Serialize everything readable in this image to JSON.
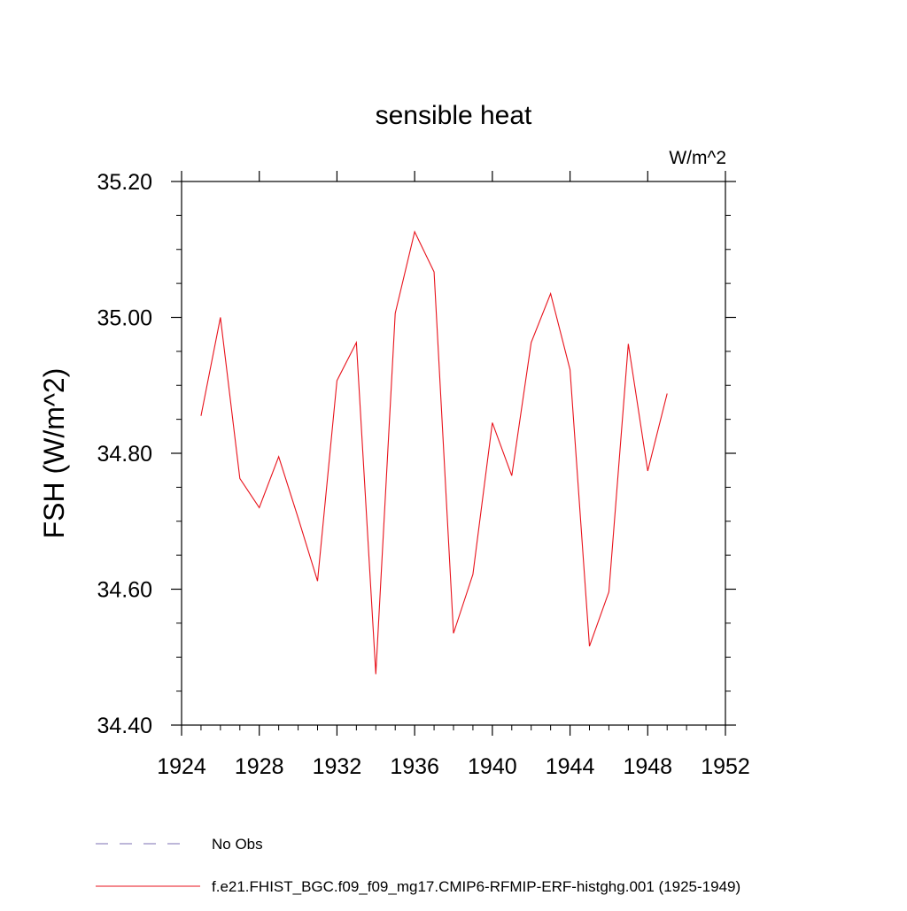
{
  "chart_data": {
    "type": "line",
    "title": "sensible heat",
    "units_label": "W/m^2",
    "ylabel": "FSH  (W/m^2)",
    "xlabel": "",
    "xlim": [
      1924,
      1952
    ],
    "ylim": [
      34.4,
      35.2
    ],
    "x_ticks": [
      1924,
      1928,
      1932,
      1936,
      1940,
      1944,
      1948,
      1952
    ],
    "y_ticks": [
      34.4,
      34.6,
      34.8,
      35.0,
      35.2
    ],
    "x_tick_labels": [
      "1924",
      "1928",
      "1932",
      "1936",
      "1940",
      "1944",
      "1948",
      "1952"
    ],
    "y_tick_labels": [
      "34.40",
      "34.60",
      "34.80",
      "35.00",
      "35.20"
    ],
    "grid": false,
    "series": [
      {
        "name": "f.e21.FHIST_BGC.f09_f09_mg17.CMIP6-RFMIP-ERF-histghg.001 (1925-1949)",
        "color": "#e8121b",
        "x": [
          1925,
          1926,
          1927,
          1928,
          1929,
          1930,
          1931,
          1932,
          1933,
          1934,
          1935,
          1936,
          1937,
          1938,
          1939,
          1940,
          1941,
          1942,
          1943,
          1944,
          1945,
          1946,
          1947,
          1948,
          1949
        ],
        "y": [
          34.855,
          35.0,
          34.763,
          34.72,
          34.795,
          34.705,
          34.612,
          34.907,
          34.963,
          34.475,
          35.006,
          35.126,
          35.067,
          34.535,
          34.622,
          34.845,
          34.767,
          34.963,
          35.035,
          34.923,
          34.516,
          34.596,
          34.961,
          34.774,
          34.888
        ]
      }
    ],
    "legend": {
      "placement": "bottom",
      "entries": [
        {
          "label": "No Obs",
          "color": "#7b6fb3",
          "style": "dashed"
        },
        {
          "label": "f.e21.FHIST_BGC.f09_f09_mg17.CMIP6-RFMIP-ERF-histghg.001 (1925-1949)",
          "color": "#e8121b",
          "style": "solid"
        }
      ]
    }
  }
}
